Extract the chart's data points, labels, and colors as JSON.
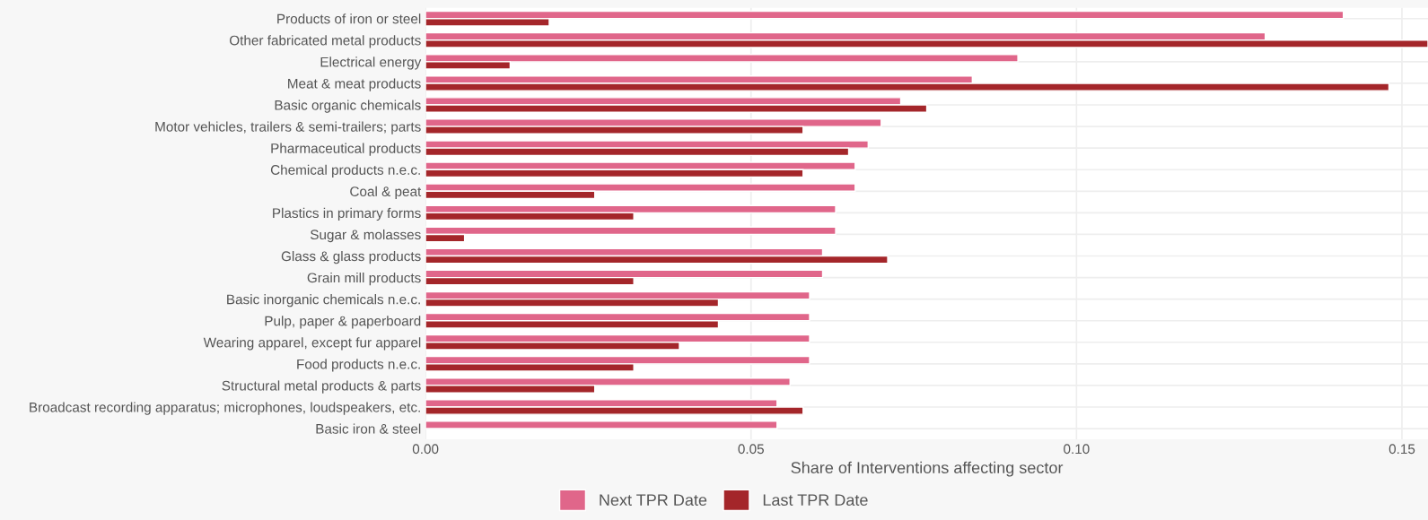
{
  "chart_data": {
    "type": "bar",
    "orientation": "horizontal",
    "xlabel": "Share of Interventions affecting sector",
    "categories": [
      "Products of iron or steel",
      "Other fabricated metal products",
      "Electrical energy",
      "Meat & meat products",
      "Basic organic chemicals",
      "Motor vehicles, trailers & semi-trailers; parts",
      "Pharmaceutical products",
      "Chemical products n.e.c.",
      "Coal & peat",
      "Plastics in primary forms",
      "Sugar & molasses",
      "Glass & glass products",
      "Grain mill products",
      "Basic inorganic chemicals n.e.c.",
      "Pulp, paper & paperboard",
      "Wearing apparel, except fur apparel",
      "Food products n.e.c.",
      "Structural metal products & parts",
      "Broadcast recording apparatus; microphones, loudspeakers, etc.",
      "Basic iron & steel"
    ],
    "series": [
      {
        "name": "Next TPR Date",
        "color": "#e0668a",
        "values": [
          0.141,
          0.129,
          0.091,
          0.084,
          0.073,
          0.07,
          0.068,
          0.066,
          0.066,
          0.063,
          0.063,
          0.061,
          0.061,
          0.059,
          0.059,
          0.059,
          0.059,
          0.056,
          0.054,
          0.054
        ]
      },
      {
        "name": "Last TPR Date",
        "color": "#a4262a",
        "values": [
          0.019,
          0.154,
          0.013,
          0.148,
          0.077,
          0.058,
          0.065,
          0.058,
          0.026,
          0.032,
          0.006,
          0.071,
          0.032,
          0.045,
          0.045,
          0.039,
          0.032,
          0.026,
          0.058,
          null
        ]
      }
    ],
    "xlim": [
      0,
      0.154
    ],
    "xticks": [
      {
        "value": 0,
        "label": "0.00"
      },
      {
        "value": 0.05,
        "label": "0.05"
      },
      {
        "value": 0.1,
        "label": "0.10"
      },
      {
        "value": 0.15,
        "label": "0.15"
      }
    ],
    "grid": true,
    "legend": "bottom"
  }
}
